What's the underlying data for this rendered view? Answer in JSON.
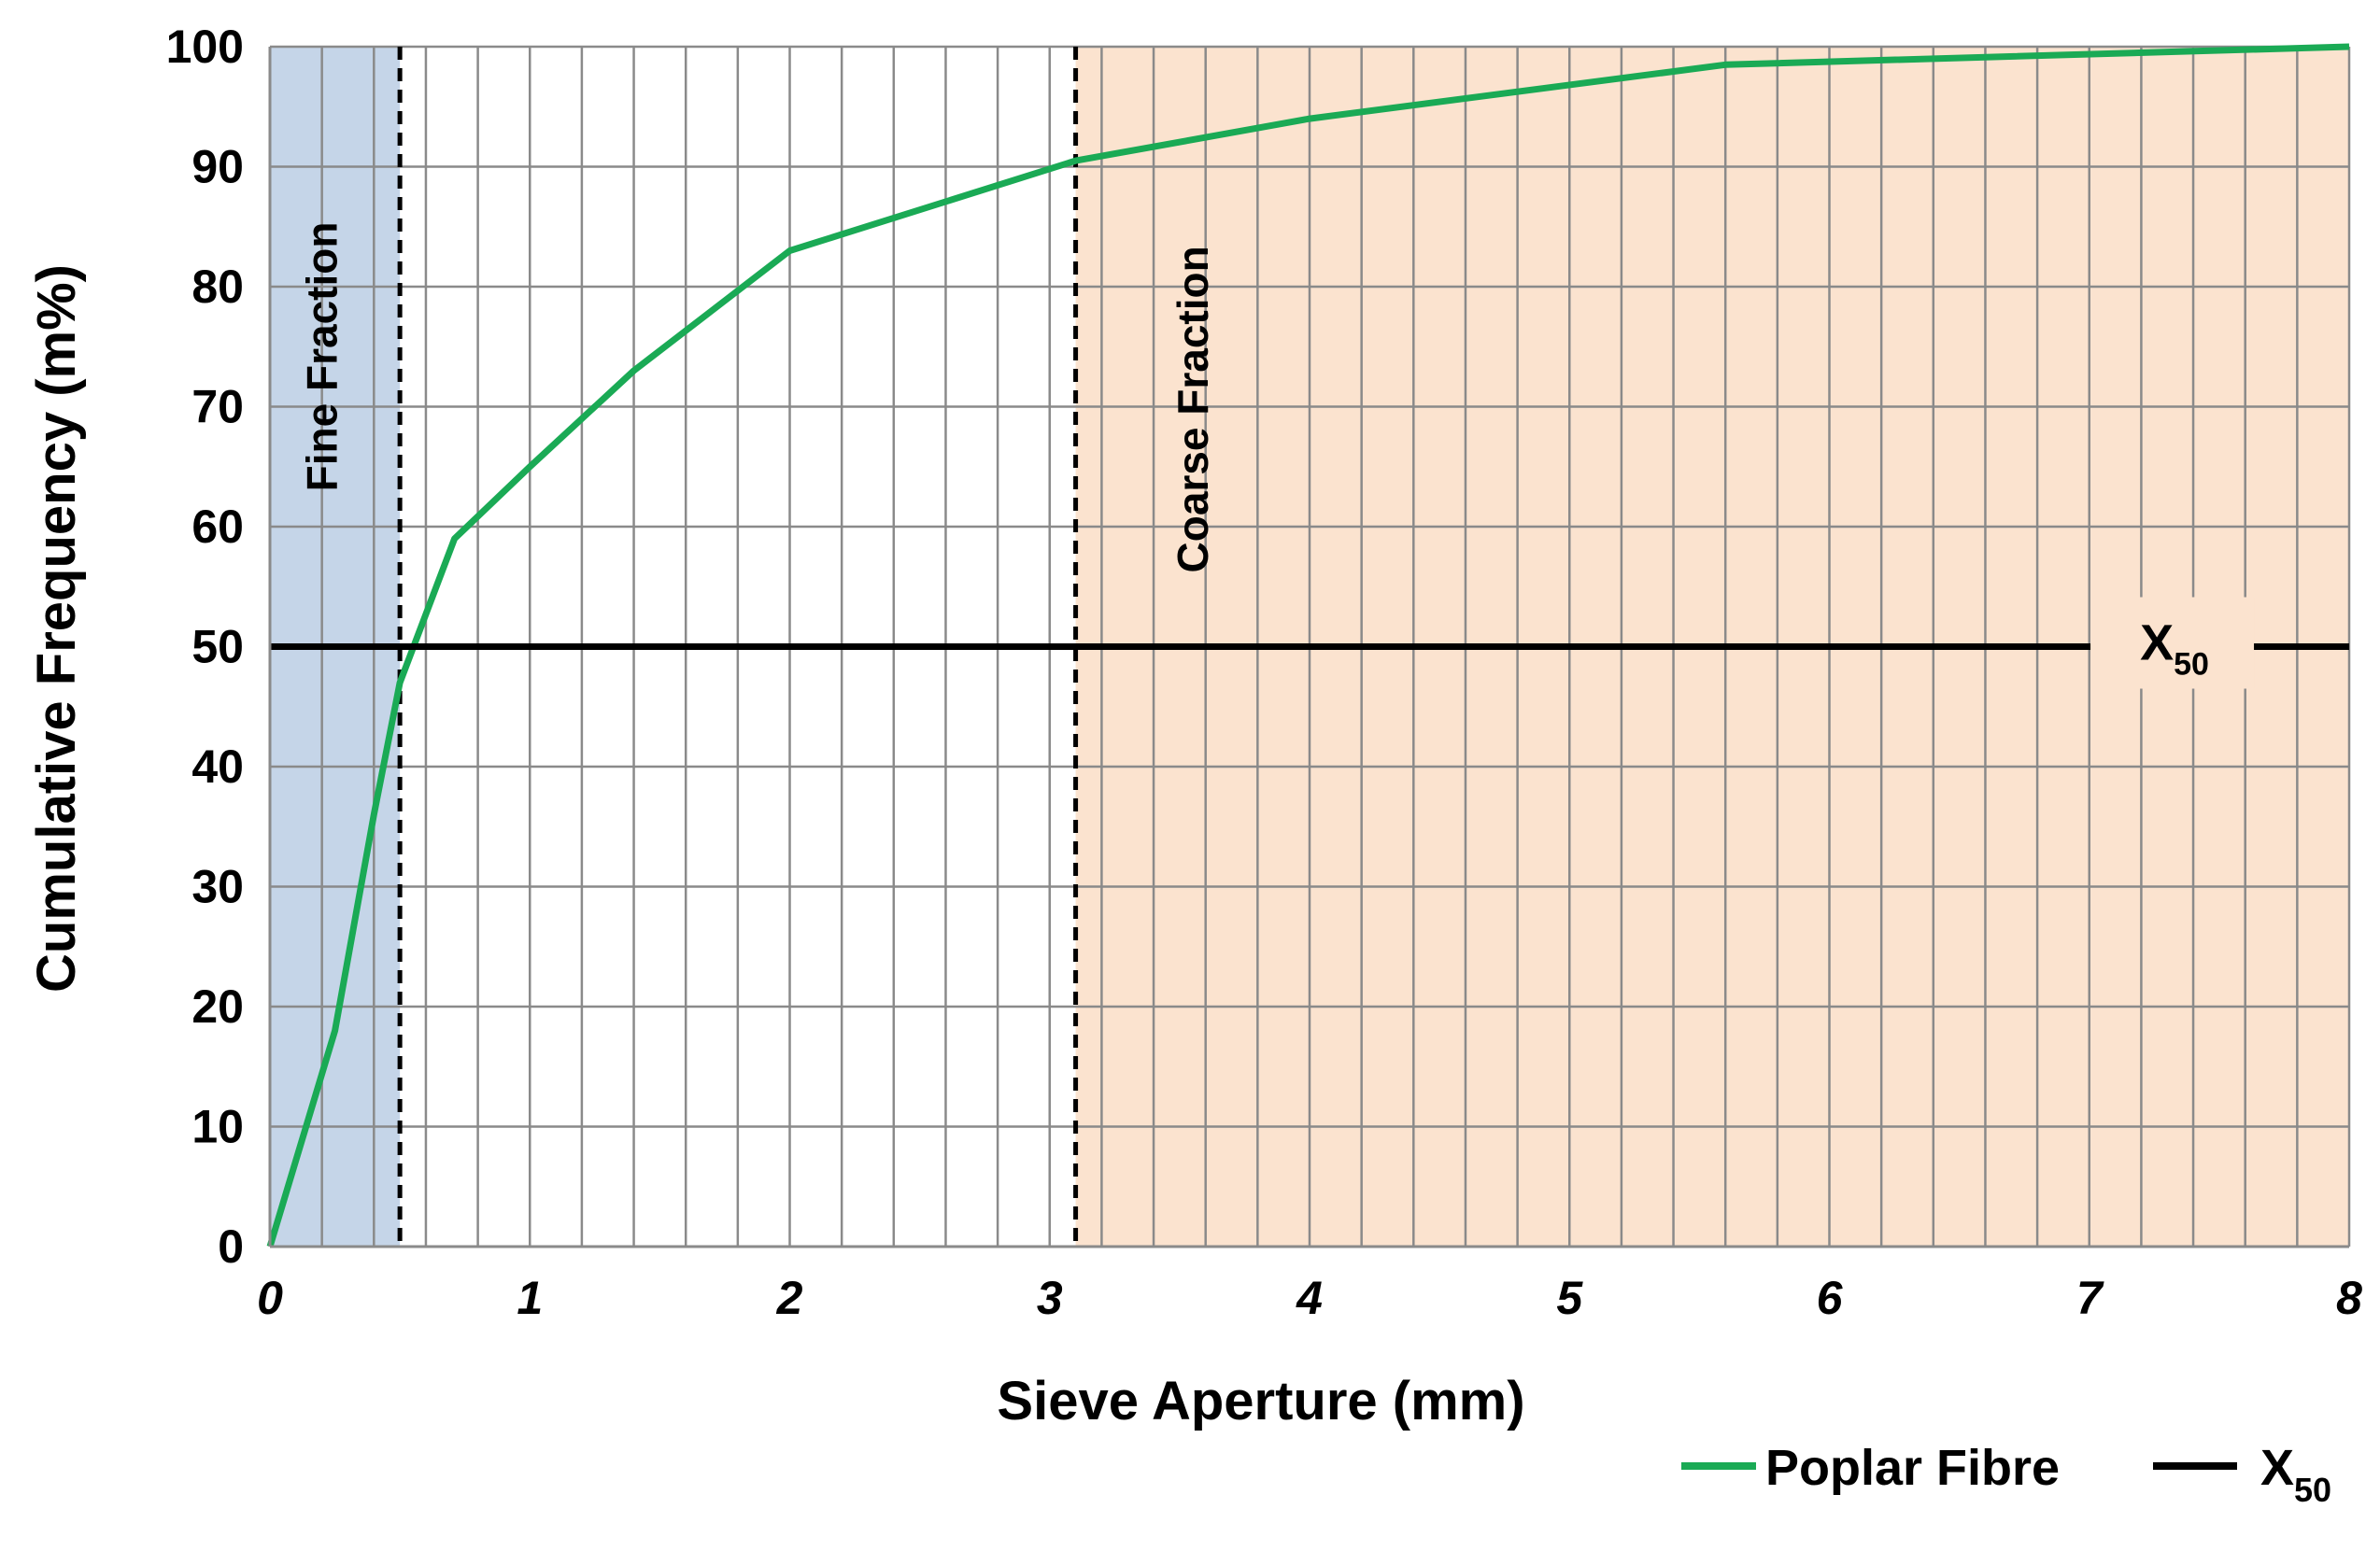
{
  "chart_data": {
    "type": "line",
    "xlabel": "Sieve Aperture (mm)",
    "ylabel": "Cumulative Frequency (m%)",
    "xlim": [
      0,
      8
    ],
    "ylim": [
      0,
      100
    ],
    "x_ticks": [
      "0",
      "1",
      "2",
      "3",
      "4",
      "5",
      "6",
      "7",
      "8"
    ],
    "y_ticks": [
      "0",
      "10",
      "20",
      "30",
      "40",
      "50",
      "60",
      "70",
      "80",
      "90",
      "100"
    ],
    "grid": true,
    "minor_x_step": 0.2,
    "series": [
      {
        "name": "Poplar Fibre",
        "color": "#1aaa55",
        "x": [
          0,
          0.25,
          0.4,
          0.5,
          0.71,
          1.0,
          1.4,
          2.0,
          3.1,
          4.0,
          5.6,
          8.0
        ],
        "y": [
          0,
          18,
          36,
          47,
          59,
          65,
          73,
          83,
          90.5,
          94,
          98.5,
          100
        ]
      },
      {
        "name": "X",
        "name_sub": "50",
        "color": "#000000",
        "x": [
          0,
          8
        ],
        "y": [
          50,
          50
        ]
      }
    ],
    "regions": [
      {
        "label": "Fine Fraction",
        "x0": 0,
        "x1": 0.5,
        "color": "#c5d5e8"
      },
      {
        "label": "Coarse Fraction",
        "x0": 3.1,
        "x1": 8,
        "color": "#fbe3cf"
      }
    ],
    "boundaries": [
      0.5,
      3.1
    ],
    "annotation": {
      "text": "X",
      "sub": "50",
      "x": 7.4,
      "y": 50
    },
    "legend_position": "bottom-right"
  }
}
